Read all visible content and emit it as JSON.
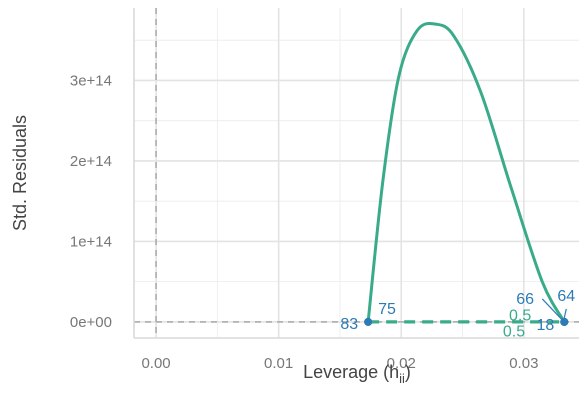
{
  "chart_data": {
    "type": "scatter",
    "title": "",
    "xlabel": {
      "main": "Leverage (h",
      "sub": "ii",
      "close": ")"
    },
    "ylabel": "Std. Residuals",
    "xlim": [
      -0.0018,
      0.0345
    ],
    "ylim": [
      -20000000000000.0,
      390000000000000.0
    ],
    "x_ticks": [
      0.0,
      0.01,
      0.02,
      0.03
    ],
    "x_tick_labels": [
      "0.00",
      "0.01",
      "0.02",
      "0.03"
    ],
    "y_ticks": [
      0,
      100000000000000.0,
      200000000000000.0,
      300000000000000.0
    ],
    "y_tick_labels": [
      "0e+00",
      "1e+14",
      "2e+14",
      "3e+14"
    ],
    "grid": true,
    "reference_lines": {
      "x": 0,
      "y": 0,
      "color": "#b3b3b3"
    },
    "points": [
      {
        "label": "83",
        "x": 0.0173,
        "y": 0
      },
      {
        "label": "75",
        "x": 0.0173,
        "y": 0
      },
      {
        "label": "18",
        "x": 0.0333,
        "y": 0
      },
      {
        "label": "64",
        "x": 0.0333,
        "y": 0
      },
      {
        "label": "66",
        "x": 0.0333,
        "y": 0
      }
    ],
    "smooth_curve": [
      {
        "x": 0.0173,
        "y": 0
      },
      {
        "x": 0.0185,
        "y": 175000000000000.0
      },
      {
        "x": 0.0198,
        "y": 305000000000000.0
      },
      {
        "x": 0.0213,
        "y": 362000000000000.0
      },
      {
        "x": 0.0228,
        "y": 370000000000000.0
      },
      {
        "x": 0.0243,
        "y": 355000000000000.0
      },
      {
        "x": 0.0265,
        "y": 285000000000000.0
      },
      {
        "x": 0.029,
        "y": 165000000000000.0
      },
      {
        "x": 0.0315,
        "y": 50000000000000.0
      },
      {
        "x": 0.0333,
        "y": 0
      }
    ],
    "cooks_distance_line": {
      "x": [
        0.0173,
        0.0333
      ],
      "y": [
        0,
        0
      ]
    },
    "contour_labels": [
      {
        "text": "0.5",
        "x": 0.0297,
        "y": 2000000000000.0
      },
      {
        "text": "0.5",
        "x": 0.0292,
        "y": -18000000000000.0
      }
    ],
    "colors": {
      "point": "#2c7bb6",
      "curve": "#3aab8a",
      "grid": "#ebebeb",
      "panel_border": "#d9d9d9",
      "tick_text": "#777777",
      "axis_title": "#444444"
    }
  }
}
